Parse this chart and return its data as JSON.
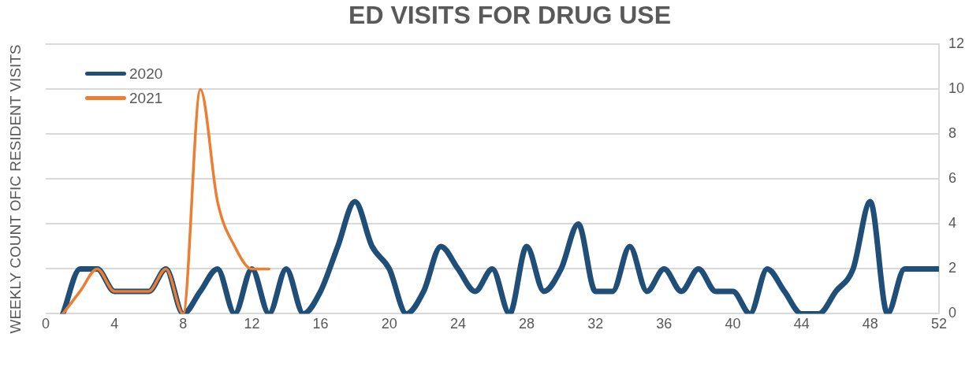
{
  "chart_data": {
    "type": "line",
    "title": "ED VISITS FOR DRUG USE",
    "ylabel": "WEEKLY COUNT OFIC RESIDENT VISITS",
    "x": [
      1,
      2,
      3,
      4,
      5,
      6,
      7,
      8,
      9,
      10,
      11,
      12,
      13,
      14,
      15,
      16,
      17,
      18,
      19,
      20,
      21,
      22,
      23,
      24,
      25,
      26,
      27,
      28,
      29,
      30,
      31,
      32,
      33,
      34,
      35,
      36,
      37,
      38,
      39,
      40,
      41,
      42,
      43,
      44,
      45,
      46,
      47,
      48,
      49,
      50,
      51,
      52
    ],
    "series": [
      {
        "name": "2020",
        "color": "#1f4e79",
        "values": [
          0,
          2,
          2,
          1,
          1,
          1,
          2,
          0,
          1,
          2,
          0,
          2,
          0,
          2,
          0,
          1,
          3,
          5,
          3,
          2,
          0,
          1,
          3,
          2,
          1,
          2,
          0,
          3,
          1,
          2,
          4,
          1,
          1,
          3,
          1,
          2,
          1,
          2,
          1,
          1,
          0,
          2,
          1,
          0,
          0,
          1,
          2,
          5,
          0,
          2,
          2,
          2
        ]
      },
      {
        "name": "2021",
        "color": "#ed7d31",
        "x": [
          1,
          2,
          3,
          4,
          5,
          6,
          7,
          8,
          9,
          10,
          11,
          12,
          13
        ],
        "values": [
          0,
          1,
          2,
          1,
          1,
          1,
          2,
          0,
          10,
          5,
          3,
          2,
          2
        ]
      }
    ],
    "xlim": [
      0,
      52
    ],
    "xticks": [
      0,
      4,
      8,
      12,
      16,
      20,
      24,
      28,
      32,
      36,
      40,
      44,
      48,
      52
    ],
    "ylim": [
      0,
      12
    ],
    "yticks": [
      0,
      2,
      4,
      6,
      8,
      10,
      12
    ],
    "grid": "y",
    "legend": "top left",
    "marker": "none",
    "line_style": "solid"
  }
}
